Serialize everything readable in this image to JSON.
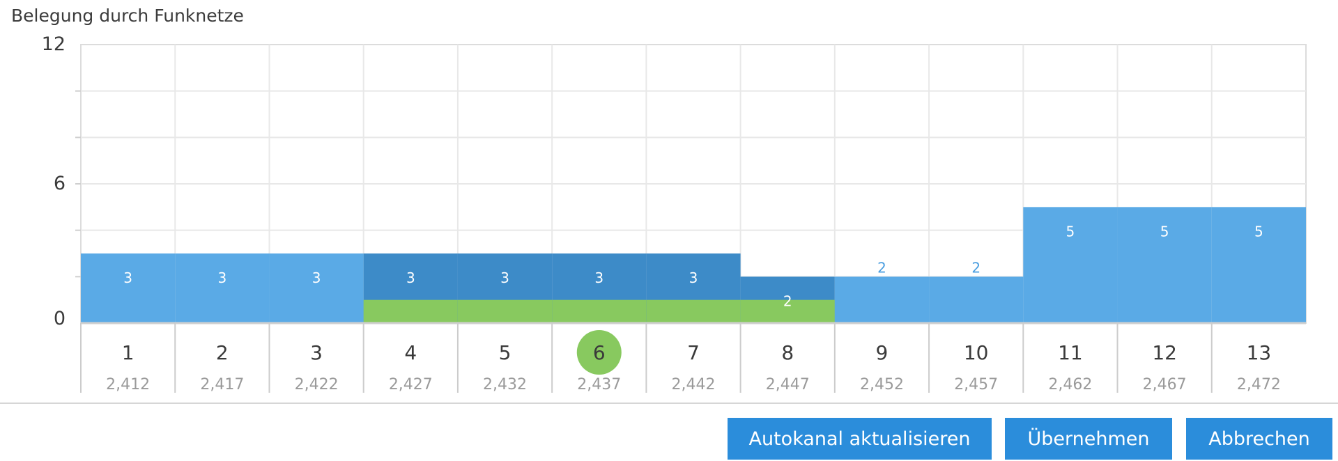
{
  "chart_data": {
    "type": "bar",
    "title": "Belegung durch Funknetze",
    "ylim": [
      0,
      12
    ],
    "y_ticks": [
      "0",
      "6",
      "12"
    ],
    "grid": true,
    "channels": [
      "1",
      "2",
      "3",
      "4",
      "5",
      "6",
      "7",
      "8",
      "9",
      "10",
      "11",
      "12",
      "13"
    ],
    "frequencies": [
      "2,412",
      "2,417",
      "2,422",
      "2,427",
      "2,432",
      "2,437",
      "2,442",
      "2,447",
      "2,452",
      "2,457",
      "2,462",
      "2,467",
      "2,472"
    ],
    "values": [
      3,
      3,
      3,
      3,
      3,
      3,
      3,
      2,
      2,
      2,
      5,
      5,
      5
    ],
    "selected_channel": "6",
    "own_network_channels": [
      "4",
      "5",
      "6",
      "7",
      "8"
    ],
    "colors": {
      "bar": "#5aaae6",
      "bar_highlight": "#3d8bc8",
      "own_network": "#88c95f",
      "selected_marker": "#88c95f",
      "label_inside": "#ffffff",
      "label_above": "#4a9ee0"
    }
  },
  "buttons": {
    "auto_label": "Autokanal aktualisieren",
    "apply_label": "Übernehmen",
    "cancel_label": "Abbrechen"
  }
}
